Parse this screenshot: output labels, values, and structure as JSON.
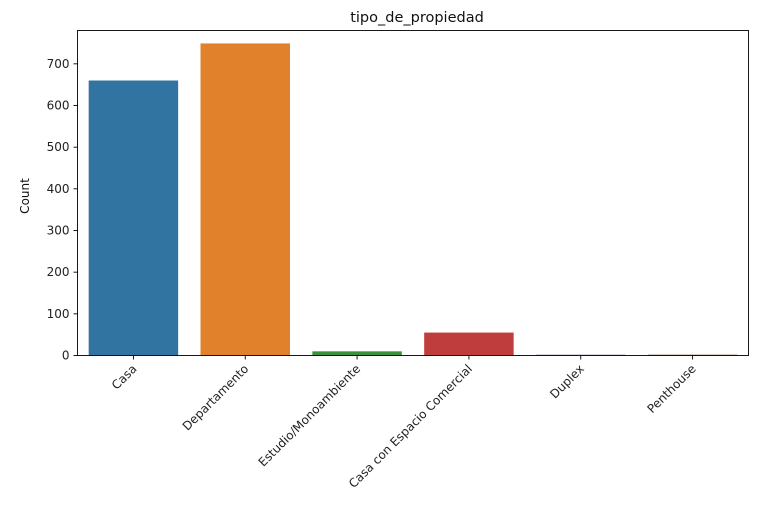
{
  "chart_data": {
    "type": "bar",
    "title": "tipo_de_propiedad",
    "xlabel": "",
    "ylabel": "Count",
    "categories": [
      "Casa",
      "Departamento",
      "Estudio/Monoambiente",
      "Casa con Espacio Comercial",
      "Duplex",
      "Penthouse"
    ],
    "values": [
      660,
      749,
      10,
      55,
      2,
      2
    ],
    "colors": [
      "#3274a1",
      "#e1812c",
      "#3a923a",
      "#c03d3e",
      "#9372b2",
      "#845b53"
    ],
    "ylim": [
      0,
      780
    ],
    "yticks": [
      0,
      100,
      200,
      300,
      400,
      500,
      600,
      700
    ],
    "grid": false,
    "legend": "none"
  }
}
